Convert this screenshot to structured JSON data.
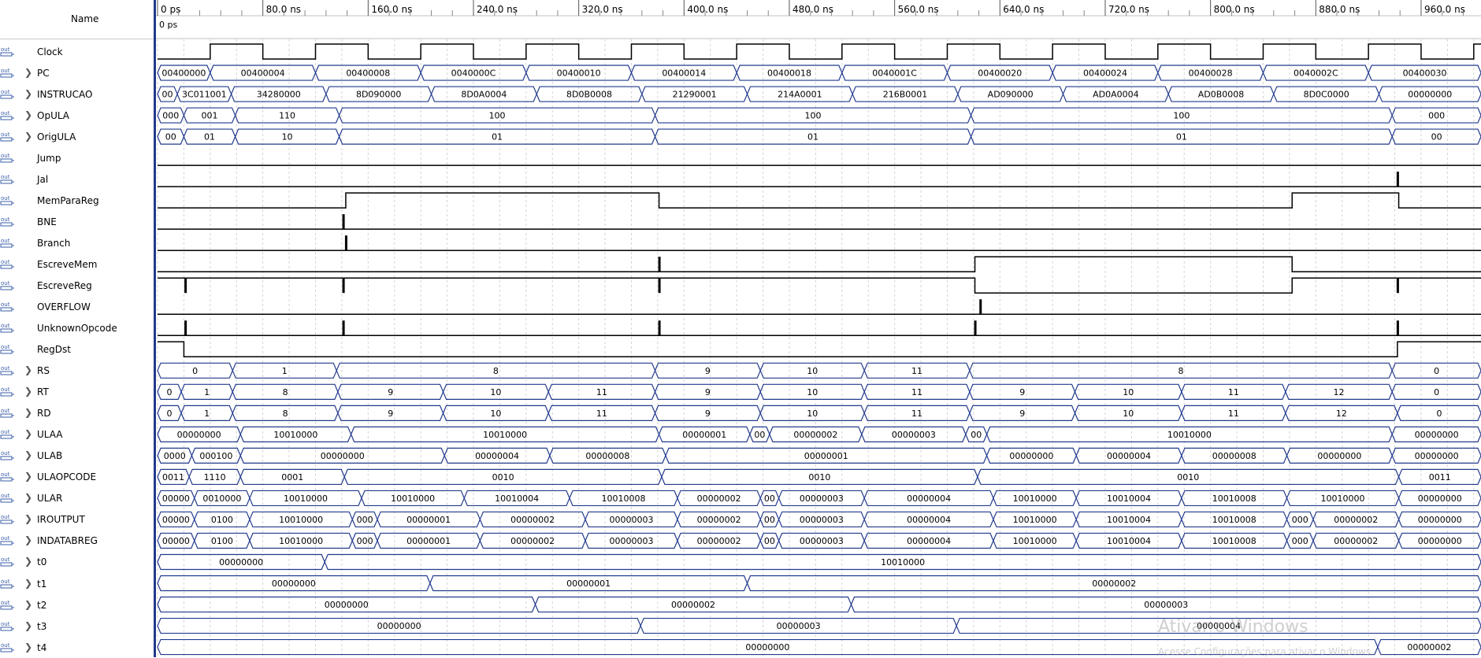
{
  "header": {
    "name_label": "Name",
    "cursor_time": "0 ps"
  },
  "timescale": {
    "ns_per_division": 80,
    "major_ticks": [
      "0 ps",
      "80.0 ns",
      "160.0 ns",
      "240.0 ns",
      "320.0 ns",
      "400.0 ns",
      "480.0 ns",
      "560.0 ns",
      "640.0 ns",
      "720.0 ns",
      "800.0 ns",
      "880.0 ns",
      "960.0 ns"
    ]
  },
  "colors": {
    "wave": "#223a8c",
    "binary": "#000000",
    "grid": "#d4d4d4",
    "bus_text": "#000000"
  },
  "signals": [
    {
      "name": "Clock",
      "type": "clock",
      "expandable": false
    },
    {
      "name": "PC",
      "type": "bus",
      "expandable": true,
      "segments": [
        {
          "t": 0,
          "v": "00400000"
        },
        {
          "t": 40,
          "v": "00400004"
        },
        {
          "t": 120,
          "v": "00400008"
        },
        {
          "t": 200,
          "v": "0040000C"
        },
        {
          "t": 280,
          "v": "00400010"
        },
        {
          "t": 360,
          "v": "00400014"
        },
        {
          "t": 440,
          "v": "00400018"
        },
        {
          "t": 520,
          "v": "0040001C"
        },
        {
          "t": 600,
          "v": "00400020"
        },
        {
          "t": 680,
          "v": "00400024"
        },
        {
          "t": 760,
          "v": "00400028"
        },
        {
          "t": 840,
          "v": "0040002C"
        },
        {
          "t": 920,
          "v": "00400030"
        }
      ]
    },
    {
      "name": "INSTRUCAO",
      "type": "bus",
      "expandable": true,
      "segments": [
        {
          "t": 0,
          "v": "000"
        },
        {
          "t": 15,
          "v": "3C011001"
        },
        {
          "t": 56,
          "v": "34280000"
        },
        {
          "t": 128,
          "v": "8D090000"
        },
        {
          "t": 208,
          "v": "8D0A0004"
        },
        {
          "t": 288,
          "v": "8D0B0008"
        },
        {
          "t": 368,
          "v": "21290001"
        },
        {
          "t": 448,
          "v": "214A0001"
        },
        {
          "t": 528,
          "v": "216B0001"
        },
        {
          "t": 608,
          "v": "AD090000"
        },
        {
          "t": 688,
          "v": "AD0A0004"
        },
        {
          "t": 768,
          "v": "AD0B0008"
        },
        {
          "t": 848,
          "v": "8D0C0000"
        },
        {
          "t": 928,
          "v": "00000000"
        }
      ]
    },
    {
      "name": "OpULA",
      "type": "bus",
      "expandable": true,
      "segments": [
        {
          "t": 0,
          "v": "000"
        },
        {
          "t": 20,
          "v": "001"
        },
        {
          "t": 59,
          "v": "110"
        },
        {
          "t": 138,
          "v": "100"
        },
        {
          "t": 378,
          "v": "100"
        },
        {
          "t": 618,
          "v": "100"
        },
        {
          "t": 938,
          "v": "000"
        }
      ]
    },
    {
      "name": "OrigULA",
      "type": "bus",
      "expandable": true,
      "segments": [
        {
          "t": 0,
          "v": "00"
        },
        {
          "t": 20,
          "v": "01"
        },
        {
          "t": 59,
          "v": "10"
        },
        {
          "t": 138,
          "v": "01"
        },
        {
          "t": 378,
          "v": "01"
        },
        {
          "t": 618,
          "v": "01"
        },
        {
          "t": 938,
          "v": "00"
        }
      ]
    },
    {
      "name": "Jump",
      "type": "bit",
      "expandable": false,
      "initial": 0,
      "transitions": []
    },
    {
      "name": "Jal",
      "type": "bit",
      "expandable": false,
      "initial": 0,
      "transitions": [],
      "glitches": [
        942
      ]
    },
    {
      "name": "MemParaReg",
      "type": "bit",
      "expandable": false,
      "initial": 0,
      "transitions": [
        {
          "t": 143,
          "v": 1
        },
        {
          "t": 381,
          "v": 0
        },
        {
          "t": 862,
          "v": 1
        },
        {
          "t": 943,
          "v": 0
        }
      ]
    },
    {
      "name": "BNE",
      "type": "bit",
      "expandable": false,
      "initial": 0,
      "transitions": [],
      "glitches": [
        141
      ]
    },
    {
      "name": "Branch",
      "type": "bit",
      "expandable": false,
      "initial": 0,
      "transitions": [],
      "glitches": [
        143
      ]
    },
    {
      "name": "EscreveMem",
      "type": "bit",
      "expandable": false,
      "initial": 0,
      "transitions": [
        {
          "t": 621,
          "v": 1
        },
        {
          "t": 862,
          "v": 0
        }
      ],
      "glitches": [
        381
      ]
    },
    {
      "name": "EscreveReg",
      "type": "bit",
      "expandable": false,
      "initial": 1,
      "transitions": [
        {
          "t": 621,
          "v": 0
        },
        {
          "t": 862,
          "v": 1
        }
      ],
      "glitches": [
        21,
        141,
        381,
        942
      ]
    },
    {
      "name": "OVERFLOW",
      "type": "bit",
      "expandable": false,
      "initial": 0,
      "transitions": [],
      "glitches": [
        625
      ]
    },
    {
      "name": "UnknownOpcode",
      "type": "bit",
      "expandable": false,
      "initial": 0,
      "transitions": [],
      "glitches": [
        21,
        141,
        381,
        621,
        942
      ]
    },
    {
      "name": "RegDst",
      "type": "bit",
      "expandable": false,
      "initial": 1,
      "transitions": [
        {
          "t": 20,
          "v": 0
        },
        {
          "t": 942,
          "v": 1
        }
      ]
    },
    {
      "name": "RS",
      "type": "bus",
      "expandable": true,
      "segments": [
        {
          "t": 0,
          "v": "0"
        },
        {
          "t": 57,
          "v": "1"
        },
        {
          "t": 136,
          "v": "8"
        },
        {
          "t": 378,
          "v": "9"
        },
        {
          "t": 458,
          "v": "10"
        },
        {
          "t": 537,
          "v": "11"
        },
        {
          "t": 617,
          "v": "8"
        },
        {
          "t": 938,
          "v": "0"
        }
      ]
    },
    {
      "name": "RT",
      "type": "bus",
      "expandable": true,
      "segments": [
        {
          "t": 0,
          "v": "0"
        },
        {
          "t": 18,
          "v": "1"
        },
        {
          "t": 57,
          "v": "8"
        },
        {
          "t": 137,
          "v": "9"
        },
        {
          "t": 217,
          "v": "10"
        },
        {
          "t": 297,
          "v": "11"
        },
        {
          "t": 378,
          "v": "9"
        },
        {
          "t": 458,
          "v": "10"
        },
        {
          "t": 537,
          "v": "11"
        },
        {
          "t": 617,
          "v": "9"
        },
        {
          "t": 697,
          "v": "10"
        },
        {
          "t": 778,
          "v": "11"
        },
        {
          "t": 857,
          "v": "12"
        },
        {
          "t": 938,
          "v": "0"
        }
      ]
    },
    {
      "name": "RD",
      "type": "bus",
      "expandable": true,
      "segments": [
        {
          "t": 0,
          "v": "0"
        },
        {
          "t": 18,
          "v": "1"
        },
        {
          "t": 57,
          "v": "8"
        },
        {
          "t": 137,
          "v": "9"
        },
        {
          "t": 217,
          "v": "10"
        },
        {
          "t": 297,
          "v": "11"
        },
        {
          "t": 378,
          "v": "9"
        },
        {
          "t": 458,
          "v": "10"
        },
        {
          "t": 537,
          "v": "11"
        },
        {
          "t": 617,
          "v": "9"
        },
        {
          "t": 697,
          "v": "10"
        },
        {
          "t": 778,
          "v": "11"
        },
        {
          "t": 857,
          "v": "12"
        },
        {
          "t": 942,
          "v": "0"
        }
      ]
    },
    {
      "name": "ULAA",
      "type": "bus",
      "expandable": true,
      "segments": [
        {
          "t": 0,
          "v": "00000000"
        },
        {
          "t": 63,
          "v": "10010000"
        },
        {
          "t": 147,
          "v": "10010000"
        },
        {
          "t": 381,
          "v": "00000001"
        },
        {
          "t": 450,
          "v": "00"
        },
        {
          "t": 465,
          "v": "00000002"
        },
        {
          "t": 535,
          "v": "00000003"
        },
        {
          "t": 614,
          "v": "00"
        },
        {
          "t": 630,
          "v": "10010000"
        },
        {
          "t": 938,
          "v": "00000000"
        }
      ]
    },
    {
      "name": "ULAB",
      "type": "bus",
      "expandable": true,
      "segments": [
        {
          "t": 0,
          "v": "0000"
        },
        {
          "t": 26,
          "v": "000100"
        },
        {
          "t": 63,
          "v": "00000000"
        },
        {
          "t": 218,
          "v": "00000004"
        },
        {
          "t": 298,
          "v": "00000008"
        },
        {
          "t": 386,
          "v": "00000001"
        },
        {
          "t": 630,
          "v": "00000000"
        },
        {
          "t": 698,
          "v": "00000004"
        },
        {
          "t": 778,
          "v": "00000008"
        },
        {
          "t": 858,
          "v": "00000000"
        },
        {
          "t": 938,
          "v": "00000000"
        }
      ]
    },
    {
      "name": "ULAOPCODE",
      "type": "bus",
      "expandable": true,
      "segments": [
        {
          "t": 0,
          "v": "0011"
        },
        {
          "t": 24,
          "v": "1110"
        },
        {
          "t": 63,
          "v": "0001"
        },
        {
          "t": 142,
          "v": "0010"
        },
        {
          "t": 383,
          "v": "0010"
        },
        {
          "t": 623,
          "v": "0010"
        },
        {
          "t": 943,
          "v": "0011"
        }
      ]
    },
    {
      "name": "ULAR",
      "type": "bus",
      "expandable": true,
      "segments": [
        {
          "t": 0,
          "v": "00000"
        },
        {
          "t": 28,
          "v": "0010000"
        },
        {
          "t": 70,
          "v": "10010000"
        },
        {
          "t": 155,
          "v": "10010000"
        },
        {
          "t": 233,
          "v": "10010004"
        },
        {
          "t": 313,
          "v": "10010008"
        },
        {
          "t": 395,
          "v": "00000002"
        },
        {
          "t": 458,
          "v": "00"
        },
        {
          "t": 472,
          "v": "00000003"
        },
        {
          "t": 537,
          "v": "00000004"
        },
        {
          "t": 635,
          "v": "10010000"
        },
        {
          "t": 698,
          "v": "10010004"
        },
        {
          "t": 778,
          "v": "10010008"
        },
        {
          "t": 858,
          "v": "10010000"
        },
        {
          "t": 943,
          "v": "00000000"
        }
      ]
    },
    {
      "name": "IROUTPUT",
      "type": "bus",
      "expandable": true,
      "segments": [
        {
          "t": 0,
          "v": "000000"
        },
        {
          "t": 28,
          "v": "0100"
        },
        {
          "t": 70,
          "v": "10010000"
        },
        {
          "t": 148,
          "v": "0000"
        },
        {
          "t": 167,
          "v": "00000001"
        },
        {
          "t": 245,
          "v": "00000002"
        },
        {
          "t": 325,
          "v": "00000003"
        },
        {
          "t": 395,
          "v": "00000002"
        },
        {
          "t": 458,
          "v": "00"
        },
        {
          "t": 472,
          "v": "00000003"
        },
        {
          "t": 537,
          "v": "00000004"
        },
        {
          "t": 635,
          "v": "10010000"
        },
        {
          "t": 698,
          "v": "10010004"
        },
        {
          "t": 778,
          "v": "10010008"
        },
        {
          "t": 858,
          "v": "0000"
        },
        {
          "t": 878,
          "v": "00000002"
        },
        {
          "t": 943,
          "v": "00000000"
        }
      ]
    },
    {
      "name": "INDATABREG",
      "type": "bus",
      "expandable": true,
      "segments": [
        {
          "t": 0,
          "v": "000000"
        },
        {
          "t": 28,
          "v": "0100"
        },
        {
          "t": 70,
          "v": "10010000"
        },
        {
          "t": 148,
          "v": "0000"
        },
        {
          "t": 167,
          "v": "00000001"
        },
        {
          "t": 245,
          "v": "00000002"
        },
        {
          "t": 325,
          "v": "00000003"
        },
        {
          "t": 395,
          "v": "00000002"
        },
        {
          "t": 458,
          "v": "00"
        },
        {
          "t": 472,
          "v": "00000003"
        },
        {
          "t": 537,
          "v": "00000004"
        },
        {
          "t": 635,
          "v": "10010000"
        },
        {
          "t": 698,
          "v": "10010004"
        },
        {
          "t": 778,
          "v": "10010008"
        },
        {
          "t": 858,
          "v": "0000"
        },
        {
          "t": 878,
          "v": "00000002"
        },
        {
          "t": 943,
          "v": "00000000"
        }
      ]
    },
    {
      "name": "t0",
      "type": "bus",
      "expandable": true,
      "segments": [
        {
          "t": 0,
          "v": "00000000"
        },
        {
          "t": 127,
          "v": "10010000"
        }
      ]
    },
    {
      "name": "t1",
      "type": "bus",
      "expandable": true,
      "segments": [
        {
          "t": 0,
          "v": "00000000"
        },
        {
          "t": 207,
          "v": "00000001"
        },
        {
          "t": 448,
          "v": "00000002"
        }
      ]
    },
    {
      "name": "t2",
      "type": "bus",
      "expandable": true,
      "segments": [
        {
          "t": 0,
          "v": "00000000"
        },
        {
          "t": 287,
          "v": "00000002"
        },
        {
          "t": 527,
          "v": "00000003"
        }
      ]
    },
    {
      "name": "t3",
      "type": "bus",
      "expandable": true,
      "segments": [
        {
          "t": 0,
          "v": "00000000"
        },
        {
          "t": 367,
          "v": "00000003"
        },
        {
          "t": 607,
          "v": "00000004"
        }
      ]
    },
    {
      "name": "t4",
      "type": "bus",
      "expandable": true,
      "segments": [
        {
          "t": 0,
          "v": "00000000"
        },
        {
          "t": 927,
          "v": "00000002"
        }
      ]
    }
  ],
  "watermark": {
    "title": "Ativar o Windows",
    "subtitle": "Acesse Configurações para ativar o Windows."
  }
}
